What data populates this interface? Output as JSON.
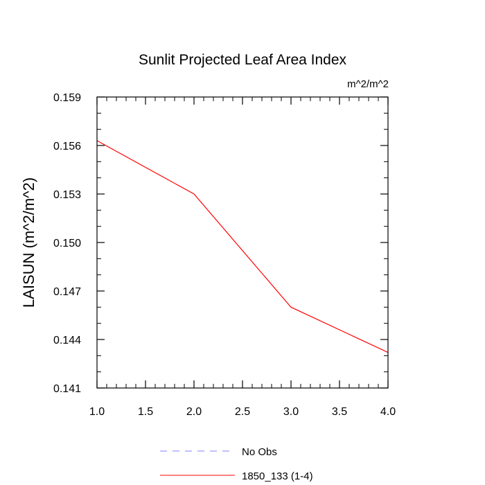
{
  "chart_data": {
    "type": "line",
    "title": "Sunlit Projected Leaf Area Index",
    "units": "m^2/m^2",
    "xlabel": "",
    "ylabel": "LAISUN  (m^2/m^2)",
    "xlim": [
      1.0,
      4.0
    ],
    "ylim": [
      0.141,
      0.159
    ],
    "x_ticks": [
      "1.0",
      "1.5",
      "2.0",
      "2.5",
      "3.0",
      "3.5",
      "4.0"
    ],
    "y_ticks": [
      "0.141",
      "0.144",
      "0.147",
      "0.150",
      "0.153",
      "0.156",
      "0.159"
    ],
    "grid": false,
    "legend_position": "bottom",
    "series": [
      {
        "name": "No Obs",
        "x": [],
        "values": [],
        "color": "#8080ff",
        "dash": "dashed"
      },
      {
        "name": "1850_133 (1-4)",
        "x": [
          1.0,
          2.0,
          3.0,
          4.0
        ],
        "values": [
          0.1563,
          0.153,
          0.146,
          0.1432
        ],
        "color": "#ff0000",
        "dash": "solid"
      }
    ]
  }
}
